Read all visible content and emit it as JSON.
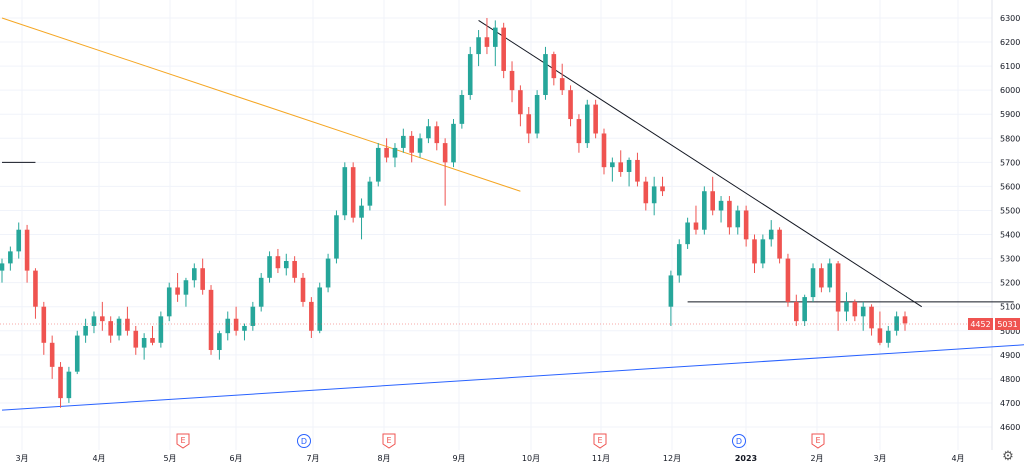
{
  "chart_data": {
    "type": "candlestick",
    "y_ticks": [
      6300,
      6200,
      6100,
      6000,
      5900,
      5800,
      5700,
      5600,
      5500,
      5400,
      5300,
      5200,
      5100,
      5000,
      4900,
      4800,
      4700,
      4600
    ],
    "x_ticks": [
      "3月",
      "4月",
      "5月",
      "6月",
      "7月",
      "8月",
      "9月",
      "10月",
      "11月",
      "12月",
      "2023",
      "2月",
      "3月",
      "4月"
    ],
    "price_labels": {
      "left": "4452",
      "right": "5031"
    },
    "event_markers": [
      "E",
      "D",
      "E",
      "E",
      "D",
      "E"
    ],
    "candles": [
      {
        "o": 5250,
        "h": 5300,
        "l": 5200,
        "c": 5280
      },
      {
        "o": 5280,
        "h": 5350,
        "l": 5250,
        "c": 5330
      },
      {
        "o": 5330,
        "h": 5450,
        "l": 5300,
        "c": 5420
      },
      {
        "o": 5420,
        "h": 5440,
        "l": 5200,
        "c": 5250
      },
      {
        "o": 5250,
        "h": 5260,
        "l": 5050,
        "c": 5100
      },
      {
        "o": 5100,
        "h": 5120,
        "l": 4900,
        "c": 4950
      },
      {
        "o": 4950,
        "h": 4980,
        "l": 4800,
        "c": 4850
      },
      {
        "o": 4850,
        "h": 4870,
        "l": 4680,
        "c": 4720
      },
      {
        "o": 4720,
        "h": 4850,
        "l": 4700,
        "c": 4830
      },
      {
        "o": 4830,
        "h": 5000,
        "l": 4820,
        "c": 4980
      },
      {
        "o": 4980,
        "h": 5050,
        "l": 4950,
        "c": 5020
      },
      {
        "o": 5020,
        "h": 5080,
        "l": 4990,
        "c": 5060
      },
      {
        "o": 5060,
        "h": 5120,
        "l": 5000,
        "c": 5040
      },
      {
        "o": 5040,
        "h": 5060,
        "l": 4950,
        "c": 4980
      },
      {
        "o": 4980,
        "h": 5060,
        "l": 4960,
        "c": 5050
      },
      {
        "o": 5050,
        "h": 5100,
        "l": 4980,
        "c": 5000
      },
      {
        "o": 5000,
        "h": 5020,
        "l": 4900,
        "c": 4930
      },
      {
        "o": 4930,
        "h": 4990,
        "l": 4880,
        "c": 4970
      },
      {
        "o": 4970,
        "h": 5020,
        "l": 4940,
        "c": 4950
      },
      {
        "o": 4950,
        "h": 5080,
        "l": 4930,
        "c": 5060
      },
      {
        "o": 5060,
        "h": 5200,
        "l": 5040,
        "c": 5180
      },
      {
        "o": 5180,
        "h": 5240,
        "l": 5120,
        "c": 5150
      },
      {
        "o": 5150,
        "h": 5220,
        "l": 5100,
        "c": 5210
      },
      {
        "o": 5210,
        "h": 5280,
        "l": 5180,
        "c": 5260
      },
      {
        "o": 5260,
        "h": 5300,
        "l": 5150,
        "c": 5170
      },
      {
        "o": 5170,
        "h": 5190,
        "l": 4900,
        "c": 4920
      },
      {
        "o": 4920,
        "h": 5000,
        "l": 4880,
        "c": 4990
      },
      {
        "o": 4990,
        "h": 5080,
        "l": 4960,
        "c": 5050
      },
      {
        "o": 5050,
        "h": 5100,
        "l": 4980,
        "c": 5000
      },
      {
        "o": 5000,
        "h": 5030,
        "l": 4960,
        "c": 5020
      },
      {
        "o": 5020,
        "h": 5120,
        "l": 5000,
        "c": 5100
      },
      {
        "o": 5100,
        "h": 5240,
        "l": 5080,
        "c": 5220
      },
      {
        "o": 5220,
        "h": 5330,
        "l": 5200,
        "c": 5310
      },
      {
        "o": 5310,
        "h": 5340,
        "l": 5240,
        "c": 5260
      },
      {
        "o": 5260,
        "h": 5320,
        "l": 5230,
        "c": 5290
      },
      {
        "o": 5290,
        "h": 5310,
        "l": 5200,
        "c": 5220
      },
      {
        "o": 5220,
        "h": 5240,
        "l": 5100,
        "c": 5120
      },
      {
        "o": 5120,
        "h": 5140,
        "l": 4970,
        "c": 5000
      },
      {
        "o": 5000,
        "h": 5200,
        "l": 4990,
        "c": 5180
      },
      {
        "o": 5180,
        "h": 5320,
        "l": 5160,
        "c": 5300
      },
      {
        "o": 5300,
        "h": 5500,
        "l": 5280,
        "c": 5480
      },
      {
        "o": 5480,
        "h": 5700,
        "l": 5460,
        "c": 5680
      },
      {
        "o": 5680,
        "h": 5700,
        "l": 5450,
        "c": 5470
      },
      {
        "o": 5470,
        "h": 5550,
        "l": 5380,
        "c": 5520
      },
      {
        "o": 5520,
        "h": 5640,
        "l": 5500,
        "c": 5620
      },
      {
        "o": 5620,
        "h": 5780,
        "l": 5600,
        "c": 5760
      },
      {
        "o": 5760,
        "h": 5800,
        "l": 5700,
        "c": 5720
      },
      {
        "o": 5720,
        "h": 5780,
        "l": 5680,
        "c": 5760
      },
      {
        "o": 5760,
        "h": 5840,
        "l": 5740,
        "c": 5810
      },
      {
        "o": 5810,
        "h": 5830,
        "l": 5700,
        "c": 5740
      },
      {
        "o": 5740,
        "h": 5820,
        "l": 5720,
        "c": 5800
      },
      {
        "o": 5800,
        "h": 5880,
        "l": 5780,
        "c": 5850
      },
      {
        "o": 5850,
        "h": 5870,
        "l": 5750,
        "c": 5780
      },
      {
        "o": 5780,
        "h": 5800,
        "l": 5520,
        "c": 5700
      },
      {
        "o": 5700,
        "h": 5880,
        "l": 5680,
        "c": 5860
      },
      {
        "o": 5860,
        "h": 6000,
        "l": 5840,
        "c": 5980
      },
      {
        "o": 5980,
        "h": 6180,
        "l": 5960,
        "c": 6150
      },
      {
        "o": 6150,
        "h": 6250,
        "l": 6100,
        "c": 6220
      },
      {
        "o": 6220,
        "h": 6300,
        "l": 6150,
        "c": 6180
      },
      {
        "o": 6180,
        "h": 6290,
        "l": 6100,
        "c": 6260
      },
      {
        "o": 6260,
        "h": 6280,
        "l": 6050,
        "c": 6080
      },
      {
        "o": 6080,
        "h": 6120,
        "l": 5950,
        "c": 6000
      },
      {
        "o": 6000,
        "h": 6020,
        "l": 5850,
        "c": 5900
      },
      {
        "o": 5900,
        "h": 5930,
        "l": 5780,
        "c": 5820
      },
      {
        "o": 5820,
        "h": 6000,
        "l": 5800,
        "c": 5980
      },
      {
        "o": 5980,
        "h": 6180,
        "l": 5960,
        "c": 6150
      },
      {
        "o": 6150,
        "h": 6160,
        "l": 6020,
        "c": 6050
      },
      {
        "o": 6050,
        "h": 6110,
        "l": 5980,
        "c": 6000
      },
      {
        "o": 6000,
        "h": 6020,
        "l": 5850,
        "c": 5880
      },
      {
        "o": 5880,
        "h": 5900,
        "l": 5740,
        "c": 5780
      },
      {
        "o": 5780,
        "h": 5960,
        "l": 5760,
        "c": 5940
      },
      {
        "o": 5940,
        "h": 5960,
        "l": 5800,
        "c": 5820
      },
      {
        "o": 5820,
        "h": 5840,
        "l": 5650,
        "c": 5680
      },
      {
        "o": 5680,
        "h": 5720,
        "l": 5620,
        "c": 5700
      },
      {
        "o": 5700,
        "h": 5750,
        "l": 5640,
        "c": 5660
      },
      {
        "o": 5660,
        "h": 5720,
        "l": 5600,
        "c": 5710
      },
      {
        "o": 5710,
        "h": 5740,
        "l": 5600,
        "c": 5620
      },
      {
        "o": 5620,
        "h": 5640,
        "l": 5500,
        "c": 5530
      },
      {
        "o": 5530,
        "h": 5640,
        "l": 5480,
        "c": 5600
      },
      {
        "o": 5600,
        "h": 5640,
        "l": 5560,
        "c": 5580
      },
      {
        "o": 5100,
        "h": 5250,
        "l": 5020,
        "c": 5230
      },
      {
        "o": 5230,
        "h": 5380,
        "l": 5200,
        "c": 5360
      },
      {
        "o": 5360,
        "h": 5470,
        "l": 5340,
        "c": 5450
      },
      {
        "o": 5450,
        "h": 5520,
        "l": 5400,
        "c": 5420
      },
      {
        "o": 5420,
        "h": 5600,
        "l": 5400,
        "c": 5580
      },
      {
        "o": 5580,
        "h": 5640,
        "l": 5480,
        "c": 5500
      },
      {
        "o": 5500,
        "h": 5560,
        "l": 5450,
        "c": 5540
      },
      {
        "o": 5540,
        "h": 5560,
        "l": 5400,
        "c": 5430
      },
      {
        "o": 5430,
        "h": 5520,
        "l": 5400,
        "c": 5500
      },
      {
        "o": 5500,
        "h": 5520,
        "l": 5350,
        "c": 5380
      },
      {
        "o": 5380,
        "h": 5400,
        "l": 5240,
        "c": 5280
      },
      {
        "o": 5280,
        "h": 5400,
        "l": 5260,
        "c": 5380
      },
      {
        "o": 5380,
        "h": 5460,
        "l": 5350,
        "c": 5420
      },
      {
        "o": 5420,
        "h": 5430,
        "l": 5280,
        "c": 5300
      },
      {
        "o": 5300,
        "h": 5320,
        "l": 5100,
        "c": 5120
      },
      {
        "o": 5120,
        "h": 5150,
        "l": 5020,
        "c": 5040
      },
      {
        "o": 5040,
        "h": 5150,
        "l": 5020,
        "c": 5140
      },
      {
        "o": 5140,
        "h": 5280,
        "l": 5120,
        "c": 5260
      },
      {
        "o": 5260,
        "h": 5280,
        "l": 5160,
        "c": 5180
      },
      {
        "o": 5180,
        "h": 5300,
        "l": 5160,
        "c": 5280
      },
      {
        "o": 5280,
        "h": 5290,
        "l": 5000,
        "c": 5080
      },
      {
        "o": 5080,
        "h": 5160,
        "l": 5040,
        "c": 5120
      },
      {
        "o": 5120,
        "h": 5130,
        "l": 5040,
        "c": 5060
      },
      {
        "o": 5060,
        "h": 5120,
        "l": 5000,
        "c": 5100
      },
      {
        "o": 5100,
        "h": 5110,
        "l": 4980,
        "c": 5010
      },
      {
        "o": 5010,
        "h": 5080,
        "l": 4940,
        "c": 4950
      },
      {
        "o": 4950,
        "h": 5020,
        "l": 4930,
        "c": 5000
      },
      {
        "o": 5000,
        "h": 5080,
        "l": 4980,
        "c": 5060
      },
      {
        "o": 5060,
        "h": 5080,
        "l": 5000,
        "c": 5031
      }
    ],
    "lines": [
      {
        "name": "orange-trendline",
        "color": "#f5a623",
        "p1": {
          "i": 0,
          "v": 6300
        },
        "p2": {
          "i": 62,
          "v": 5580
        }
      },
      {
        "name": "descending-trendline",
        "color": "#131722",
        "p1": {
          "i": 57,
          "v": 6290
        },
        "p2": {
          "i": 110,
          "v": 5100
        }
      },
      {
        "name": "horizontal-support",
        "color": "#131722",
        "p1": {
          "i": 82,
          "v": 5120
        },
        "p2": {
          "i": 121,
          "v": 5120
        }
      },
      {
        "name": "rising-trendline",
        "color": "#2962ff",
        "p1": {
          "i": 0,
          "v": 4670
        },
        "p2": {
          "i": 135,
          "v": 4970
        }
      },
      {
        "name": "left-level",
        "color": "#131722",
        "p1": {
          "i": 0,
          "v": 5700
        },
        "p2": {
          "i": 4,
          "v": 5700
        }
      }
    ],
    "colors": {
      "up": "#26a69a",
      "down": "#ef5350",
      "price_label": "#ef5350",
      "event_E": "#ef5350",
      "event_D": "#2962ff"
    }
  }
}
